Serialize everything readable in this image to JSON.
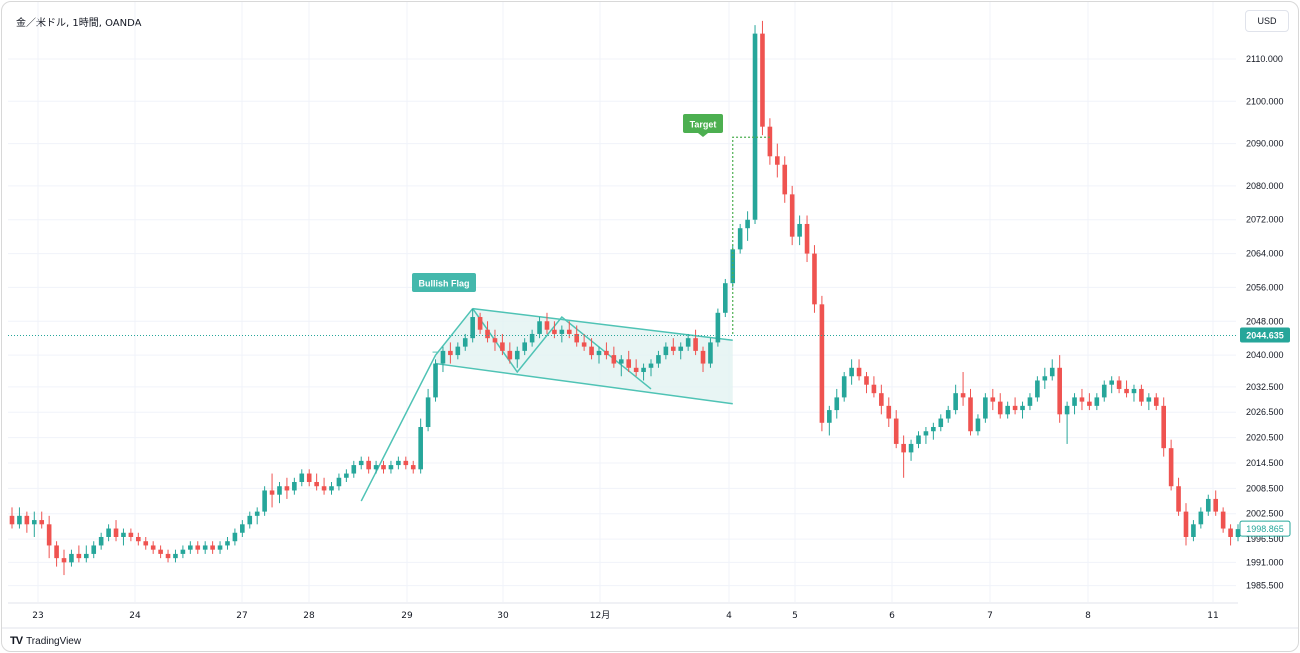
{
  "header": {
    "symbol": "金／米ドル, 1時間, OANDA",
    "currency_button": "USD"
  },
  "footer": {
    "logo_mark": "TV",
    "logo_text": "TradingView"
  },
  "colors": {
    "up": "#26a69a",
    "down": "#ef5350",
    "pattern": "#4fc3b5",
    "pattern_fill": "#e2f3f1",
    "target": "#4caf50",
    "grid": "#f0f3fa"
  },
  "chart_data": {
    "type": "candlestick",
    "title": "金／米ドル, 1時間, OANDA",
    "y_axis": {
      "ticks": [
        "2110.000",
        "2100.000",
        "2090.000",
        "2080.000",
        "2072.000",
        "2064.000",
        "2056.000",
        "2048.000",
        "2040.000",
        "2032.500",
        "2026.500",
        "2020.500",
        "2014.500",
        "2008.500",
        "2002.500",
        "1996.500",
        "1991.000",
        "1985.500"
      ],
      "tick_values": [
        2110,
        2100,
        2090,
        2080,
        2072,
        2064,
        2056,
        2048,
        2040,
        2032.5,
        2026.5,
        2020.5,
        2014.5,
        2008.5,
        2002.5,
        1996.5,
        1991,
        1985.5
      ],
      "ylim": [
        1985.5,
        2120
      ]
    },
    "x_axis": {
      "ticks": [
        "23",
        "24",
        "27",
        "28",
        "29",
        "30",
        "12月",
        "4",
        "5",
        "6",
        "7",
        "8",
        "11"
      ]
    },
    "current_price": "2044.635",
    "last_price": "1998.865",
    "annotations": {
      "bullish_flag": "Bullish Flag",
      "target": "Target"
    },
    "candles": [
      [
        2002.0,
        2004.0,
        1999.0,
        2000.0
      ],
      [
        2000.0,
        2004.0,
        1999.0,
        2002.0
      ],
      [
        2002.0,
        2003.0,
        1998.0,
        2000.0
      ],
      [
        2000.0,
        2003.0,
        1997.0,
        2001.0
      ],
      [
        2001.0,
        2003.0,
        1999.0,
        2000.0
      ],
      [
        2000.0,
        2002.0,
        1992.0,
        1995.0
      ],
      [
        1995.0,
        1996.0,
        1990.0,
        1992.0
      ],
      [
        1992.0,
        1994.0,
        1988.0,
        1991.0
      ],
      [
        1991.0,
        1994.0,
        1990.0,
        1993.0
      ],
      [
        1993.0,
        1995.0,
        1991.0,
        1992.0
      ],
      [
        1992.0,
        1995.0,
        1991.0,
        1993.0
      ],
      [
        1993.0,
        1996.0,
        1992.0,
        1995.0
      ],
      [
        1995.0,
        1998.0,
        1994.0,
        1997.0
      ],
      [
        1997.0,
        2000.0,
        1996.0,
        1999.0
      ],
      [
        1999.0,
        2001.0,
        1996.0,
        1997.0
      ],
      [
        1997.0,
        1999.0,
        1995.0,
        1998.0
      ],
      [
        1998.0,
        1999.0,
        1996.0,
        1997.0
      ],
      [
        1997.0,
        1998.0,
        1995.0,
        1996.0
      ],
      [
        1996.0,
        1997.0,
        1994.0,
        1995.0
      ],
      [
        1995.0,
        1996.0,
        1993.0,
        1994.0
      ],
      [
        1994.0,
        1995.0,
        1992.0,
        1993.0
      ],
      [
        1993.0,
        1994.0,
        1991.0,
        1992.0
      ],
      [
        1992.0,
        1994.0,
        1991.0,
        1993.0
      ],
      [
        1993.0,
        1995.0,
        1992.0,
        1994.0
      ],
      [
        1994.0,
        1996.0,
        1993.0,
        1995.0
      ],
      [
        1995.0,
        1996.0,
        1993.0,
        1994.0
      ],
      [
        1994.0,
        1996.0,
        1993.0,
        1995.0
      ],
      [
        1995.0,
        1996.0,
        1993.0,
        1994.0
      ],
      [
        1994.0,
        1996.0,
        1993.0,
        1995.0
      ],
      [
        1995.0,
        1997.0,
        1994.0,
        1996.0
      ],
      [
        1996.0,
        1999.0,
        1995.0,
        1998.0
      ],
      [
        1998.0,
        2001.0,
        1997.0,
        2000.0
      ],
      [
        2000.0,
        2003.0,
        1999.0,
        2002.0
      ],
      [
        2002.0,
        2004.0,
        2000.0,
        2003.0
      ],
      [
        2003.0,
        2009.0,
        2002.0,
        2008.0
      ],
      [
        2008.0,
        2012.0,
        2004.0,
        2007.0
      ],
      [
        2007.0,
        2010.0,
        2005.0,
        2009.0
      ],
      [
        2009.0,
        2011.0,
        2006.0,
        2008.0
      ],
      [
        2008.0,
        2011.0,
        2007.0,
        2010.0
      ],
      [
        2010.0,
        2013.0,
        2009.0,
        2012.0
      ],
      [
        2012.0,
        2013.0,
        2009.0,
        2010.0
      ],
      [
        2010.0,
        2012.0,
        2008.0,
        2009.0
      ],
      [
        2009.0,
        2011.0,
        2007.0,
        2008.0
      ],
      [
        2008.0,
        2010.0,
        2007.0,
        2009.0
      ],
      [
        2009.0,
        2012.0,
        2008.0,
        2011.0
      ],
      [
        2011.0,
        2013.0,
        2010.0,
        2012.0
      ],
      [
        2012.0,
        2015.0,
        2011.0,
        2014.0
      ],
      [
        2014.0,
        2016.0,
        2013.0,
        2015.0
      ],
      [
        2015.0,
        2016.0,
        2012.0,
        2013.0
      ],
      [
        2013.0,
        2015.0,
        2012.0,
        2014.0
      ],
      [
        2014.0,
        2015.0,
        2012.0,
        2013.0
      ],
      [
        2013.0,
        2015.0,
        2012.0,
        2014.0
      ],
      [
        2014.0,
        2016.0,
        2013.0,
        2015.0
      ],
      [
        2015.0,
        2016.0,
        2013.0,
        2014.0
      ],
      [
        2014.0,
        2015.0,
        2012.0,
        2013.0
      ],
      [
        2013.0,
        2025.0,
        2012.0,
        2023.0
      ],
      [
        2023.0,
        2032.0,
        2022.0,
        2030.0
      ],
      [
        2030.0,
        2039.0,
        2029.0,
        2038.0
      ],
      [
        2038.0,
        2042.0,
        2036.0,
        2041.0
      ],
      [
        2041.0,
        2043.0,
        2038.0,
        2040.0
      ],
      [
        2040.0,
        2043.0,
        2039.0,
        2042.0
      ],
      [
        2042.0,
        2045.0,
        2041.0,
        2044.0
      ],
      [
        2044.0,
        2051.0,
        2043.0,
        2049.0
      ],
      [
        2049.0,
        2050.0,
        2045.0,
        2046.0
      ],
      [
        2046.0,
        2048.0,
        2043.0,
        2044.0
      ],
      [
        2044.0,
        2046.0,
        2041.0,
        2043.0
      ],
      [
        2043.0,
        2045.0,
        2040.0,
        2041.0
      ],
      [
        2041.0,
        2043.0,
        2038.0,
        2039.0
      ],
      [
        2039.0,
        2042.0,
        2037.0,
        2041.0
      ],
      [
        2041.0,
        2044.0,
        2040.0,
        2043.0
      ],
      [
        2043.0,
        2046.0,
        2042.0,
        2045.0
      ],
      [
        2045.0,
        2049.0,
        2044.0,
        2048.0
      ],
      [
        2048.0,
        2050.0,
        2045.0,
        2046.0
      ],
      [
        2046.0,
        2048.0,
        2044.0,
        2045.0
      ],
      [
        2045.0,
        2047.0,
        2043.0,
        2046.0
      ],
      [
        2046.0,
        2048.0,
        2044.0,
        2045.0
      ],
      [
        2045.0,
        2047.0,
        2042.0,
        2043.0
      ],
      [
        2043.0,
        2045.0,
        2041.0,
        2042.0
      ],
      [
        2042.0,
        2044.0,
        2039.0,
        2040.0
      ],
      [
        2040.0,
        2042.0,
        2038.0,
        2041.0
      ],
      [
        2041.0,
        2043.0,
        2039.0,
        2040.0
      ],
      [
        2040.0,
        2042.0,
        2037.0,
        2038.0
      ],
      [
        2038.0,
        2040.0,
        2035.0,
        2039.0
      ],
      [
        2039.0,
        2041.0,
        2036.0,
        2037.0
      ],
      [
        2037.0,
        2039.0,
        2035.0,
        2036.0
      ],
      [
        2036.0,
        2038.0,
        2034.0,
        2037.0
      ],
      [
        2037.0,
        2039.0,
        2035.0,
        2038.0
      ],
      [
        2038.0,
        2041.0,
        2037.0,
        2040.0
      ],
      [
        2040.0,
        2043.0,
        2039.0,
        2042.0
      ],
      [
        2042.0,
        2044.0,
        2040.0,
        2041.0
      ],
      [
        2041.0,
        2043.0,
        2039.0,
        2042.0
      ],
      [
        2042.0,
        2045.0,
        2041.0,
        2044.0
      ],
      [
        2044.0,
        2046.0,
        2040.0,
        2041.0
      ],
      [
        2041.0,
        2042.0,
        2036.0,
        2038.0
      ],
      [
        2038.0,
        2044.0,
        2037.0,
        2043.0
      ],
      [
        2043.0,
        2051.0,
        2042.0,
        2050.0
      ],
      [
        2050.0,
        2058.0,
        2049.0,
        2057.0
      ],
      [
        2057.0,
        2066.0,
        2056.0,
        2065.0
      ],
      [
        2065.0,
        2071.0,
        2064.0,
        2070.0
      ],
      [
        2070.0,
        2074.0,
        2067.0,
        2072.0
      ],
      [
        2072.0,
        2118.0,
        2071.0,
        2116.0
      ],
      [
        2116.0,
        2119.0,
        2092.0,
        2094.0
      ],
      [
        2094.0,
        2096.0,
        2085.0,
        2087.0
      ],
      [
        2087.0,
        2090.0,
        2082.0,
        2085.0
      ],
      [
        2085.0,
        2087.0,
        2076.0,
        2078.0
      ],
      [
        2078.0,
        2080.0,
        2066.0,
        2068.0
      ],
      [
        2068.0,
        2073.0,
        2066.0,
        2071.0
      ],
      [
        2071.0,
        2073.0,
        2062.0,
        2064.0
      ],
      [
        2064.0,
        2066.0,
        2050.0,
        2052.0
      ],
      [
        2052.0,
        2054.0,
        2022.0,
        2024.0
      ],
      [
        2024.0,
        2028.0,
        2021.0,
        2027.0
      ],
      [
        2027.0,
        2032.0,
        2025.0,
        2030.0
      ],
      [
        2030.0,
        2036.0,
        2029.0,
        2035.0
      ],
      [
        2035.0,
        2039.0,
        2033.0,
        2037.0
      ],
      [
        2037.0,
        2039.0,
        2034.0,
        2035.0
      ],
      [
        2035.0,
        2036.0,
        2031.0,
        2033.0
      ],
      [
        2033.0,
        2035.0,
        2030.0,
        2031.0
      ],
      [
        2031.0,
        2033.0,
        2026.0,
        2028.0
      ],
      [
        2028.0,
        2030.0,
        2023.0,
        2025.0
      ],
      [
        2025.0,
        2027.0,
        2018.0,
        2019.0
      ],
      [
        2019.0,
        2021.0,
        2011.0,
        2017.0
      ],
      [
        2017.0,
        2020.0,
        2015.0,
        2019.0
      ],
      [
        2019.0,
        2022.0,
        2018.0,
        2021.0
      ],
      [
        2021.0,
        2023.0,
        2019.0,
        2022.0
      ],
      [
        2022.0,
        2024.0,
        2020.0,
        2023.0
      ],
      [
        2023.0,
        2026.0,
        2022.0,
        2025.0
      ],
      [
        2025.0,
        2028.0,
        2024.0,
        2027.0
      ],
      [
        2027.0,
        2033.0,
        2026.0,
        2031.0
      ],
      [
        2031.0,
        2036.0,
        2028.0,
        2030.0
      ],
      [
        2030.0,
        2032.0,
        2021.0,
        2022.0
      ],
      [
        2022.0,
        2026.0,
        2021.0,
        2025.0
      ],
      [
        2025.0,
        2031.0,
        2024.0,
        2030.0
      ],
      [
        2030.0,
        2032.0,
        2027.0,
        2029.0
      ],
      [
        2029.0,
        2031.0,
        2025.0,
        2026.0
      ],
      [
        2026.0,
        2029.0,
        2025.0,
        2028.0
      ],
      [
        2028.0,
        2030.0,
        2026.0,
        2027.0
      ],
      [
        2027.0,
        2029.0,
        2025.0,
        2028.0
      ],
      [
        2028.0,
        2031.0,
        2027.0,
        2030.0
      ],
      [
        2030.0,
        2035.0,
        2029.0,
        2034.0
      ],
      [
        2034.0,
        2037.0,
        2032.0,
        2035.0
      ],
      [
        2035.0,
        2039.0,
        2034.0,
        2037.0
      ],
      [
        2037.0,
        2040.0,
        2024.0,
        2026.0
      ],
      [
        2026.0,
        2029.0,
        2019.0,
        2028.0
      ],
      [
        2028.0,
        2031.0,
        2026.0,
        2030.0
      ],
      [
        2030.0,
        2032.0,
        2027.0,
        2029.0
      ],
      [
        2029.0,
        2031.0,
        2027.0,
        2028.0
      ],
      [
        2028.0,
        2031.0,
        2027.0,
        2030.0
      ],
      [
        2030.0,
        2034.0,
        2029.0,
        2033.0
      ],
      [
        2033.0,
        2035.0,
        2031.0,
        2034.0
      ],
      [
        2034.0,
        2035.0,
        2031.0,
        2032.0
      ],
      [
        2032.0,
        2034.0,
        2030.0,
        2031.0
      ],
      [
        2031.0,
        2033.0,
        2029.0,
        2032.0
      ],
      [
        2032.0,
        2033.0,
        2028.0,
        2029.0
      ],
      [
        2029.0,
        2031.0,
        2027.0,
        2030.0
      ],
      [
        2030.0,
        2031.0,
        2027.0,
        2028.0
      ],
      [
        2028.0,
        2030.0,
        2016.0,
        2018.0
      ],
      [
        2018.0,
        2020.0,
        2008.0,
        2009.0
      ],
      [
        2009.0,
        2011.0,
        2002.0,
        2003.0
      ],
      [
        2003.0,
        2005.0,
        1995.0,
        1997.0
      ],
      [
        1997.0,
        2001.0,
        1996.0,
        2000.0
      ],
      [
        2000.0,
        2004.0,
        1999.0,
        2003.0
      ],
      [
        2003.0,
        2007.0,
        2002.0,
        2006.0
      ],
      [
        2006.0,
        2008.0,
        2002.0,
        2003.0
      ],
      [
        2003.0,
        2004.0,
        1998.0,
        1999.0
      ],
      [
        1999.0,
        2000.0,
        1995.0,
        1997.0
      ],
      [
        1997.0,
        2000.0,
        1996.0,
        1998.865
      ]
    ]
  }
}
